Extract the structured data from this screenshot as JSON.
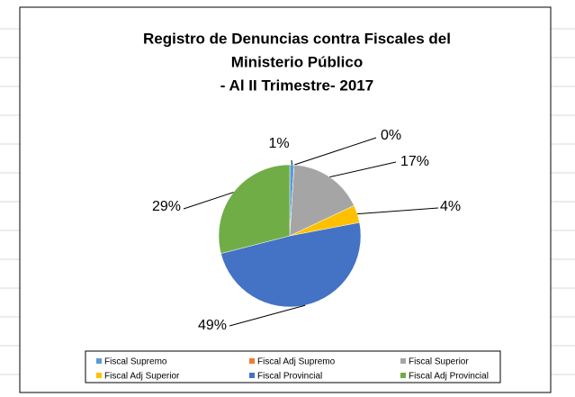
{
  "chart_data": {
    "type": "pie",
    "title": [
      "Registro de Denuncias contra Fiscales del",
      "Ministerio Público",
      "- Al II Trimestre- 2017"
    ],
    "categories": [
      "Fiscal Supremo",
      "Fiscal Adj Supremo",
      "Fiscal Superior",
      "Fiscal Adj Superior",
      "Fiscal Provincial",
      "Fiscal Adj Provincial"
    ],
    "values": [
      1,
      0,
      17,
      4,
      49,
      29
    ],
    "value_labels": [
      "1%",
      "0%",
      "17%",
      "4%",
      "49%",
      "29%"
    ],
    "colors": [
      "#5b9bd5",
      "#ed7d31",
      "#a5a5a5",
      "#ffc000",
      "#4472c4",
      "#70ad47"
    ],
    "legend": "bottom"
  }
}
